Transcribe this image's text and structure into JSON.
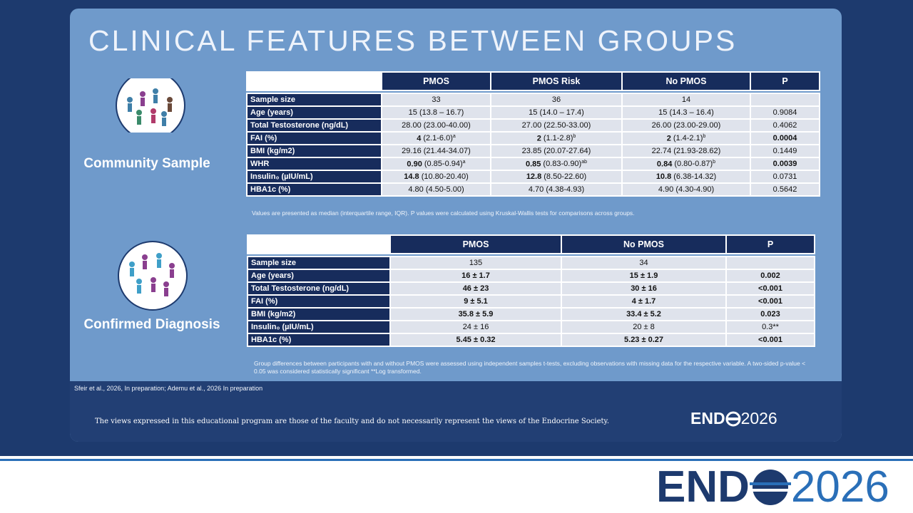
{
  "title": "CLINICAL FEATURES BETWEEN GROUPS",
  "section1": {
    "label": "Community Sample",
    "table": {
      "headers": [
        "PMOS",
        "PMOS Risk",
        "No PMOS",
        "P"
      ],
      "rows": [
        [
          "Sample size",
          "33",
          "36",
          "14"
        ],
        [
          "Age (years)",
          "15 (13.8 – 16.7)",
          "15 (14.0 – 17.4)",
          "15 (14.3 – 16.4)",
          "0.9084"
        ],
        [
          "Total Testosterone (ng/dL)",
          "28.00 (23.00-40.00)",
          "27.00 (22.50-33.00)",
          "26.00 (23.00-29.00)",
          "0.4062"
        ],
        [
          "FAI (%)",
          {
            "bold": "4",
            "rest": "(2.1-6.0)",
            "sup": "a"
          },
          {
            "bold": "2",
            "rest": "(1.1-2.8)",
            "sup": "b"
          },
          {
            "bold": "2",
            "rest": "(1.4-2.1)",
            "sup": "b"
          },
          {
            "bold": "0.0004"
          }
        ],
        [
          "BMI (kg/m2)",
          "29.16 (21.44-34.07)",
          "23.85 (20.07-27.64)",
          "22.74 (21.93-28.62)",
          "0.1449"
        ],
        [
          "WHR",
          {
            "bold": "0.90",
            "rest": "(0.85-0.94)",
            "sup": "a"
          },
          {
            "bold": "0.85",
            "rest": "(0.83-0.90)",
            "sup": "ab"
          },
          {
            "bold": "0.84",
            "rest": "(0.80-0.87)",
            "sup": "b"
          },
          {
            "bold": "0.0039"
          }
        ],
        [
          "Insulin₀ (µIU/mL)",
          {
            "bold": "14.8",
            "rest": "(10.80-20.40)"
          },
          {
            "bold": "12.8",
            "rest": "(8.50-22.60)"
          },
          {
            "bold": "10.8",
            "rest": "(6.38-14.32)"
          },
          "0.0731"
        ],
        [
          "HBA1c (%)",
          "4.80 (4.50-5.00)",
          "4.70 (4.38-4.93)",
          "4.90 (4.30-4.90)",
          "0.5642"
        ]
      ],
      "note": "Values are presented as median (interquartile range, IQR). P values were calculated using Kruskal-Wallis tests for comparisons across groups."
    }
  },
  "section2": {
    "label": "Confirmed Diagnosis",
    "table": {
      "headers": [
        "PMOS",
        "No PMOS",
        "P"
      ],
      "rows": [
        [
          "Sample size",
          "135",
          "34"
        ],
        [
          "Age (years)",
          {
            "bold": "16 ± 1.7"
          },
          {
            "bold": "15 ± 1.9"
          },
          {
            "bold": "0.002"
          }
        ],
        [
          "Total Testosterone (ng/dL)",
          {
            "bold": "46 ± 23"
          },
          {
            "bold": "30 ± 16"
          },
          {
            "bold": "<0.001"
          }
        ],
        [
          "FAI (%)",
          {
            "bold": "9 ± 5.1"
          },
          {
            "bold": "4 ± 1.7"
          },
          {
            "bold": "<0.001"
          }
        ],
        [
          "BMI (kg/m2)",
          {
            "bold": "35.8 ± 5.9"
          },
          {
            "bold": "33.4 ± 5.2"
          },
          {
            "bold": "0.023"
          }
        ],
        [
          "Insulin₀ (µIU/mL)",
          "24 ± 16",
          "20 ± 8",
          "0.3**"
        ],
        [
          "HBA1c (%)",
          {
            "bold": "5.45 ± 0.32"
          },
          {
            "bold": "5.23 ± 0.27"
          },
          {
            "bold": "<0.001"
          }
        ]
      ],
      "note": "Group differences between participants with and without PMOS were assessed using independent samples t-tests, excluding observations with missing data for the respective variable. A two-sided p-value < 0.05 was considered statistically significant **Log transformed."
    }
  },
  "citation": "Sfeir et al., 2026, In preparation; Ademu et al., 2026 In preparation",
  "disclaimer": "The views expressed in this educational program are those of the faculty and do not necessarily represent the views of the Endocrine Society.",
  "logo": {
    "left": "END",
    "right": "2026"
  }
}
